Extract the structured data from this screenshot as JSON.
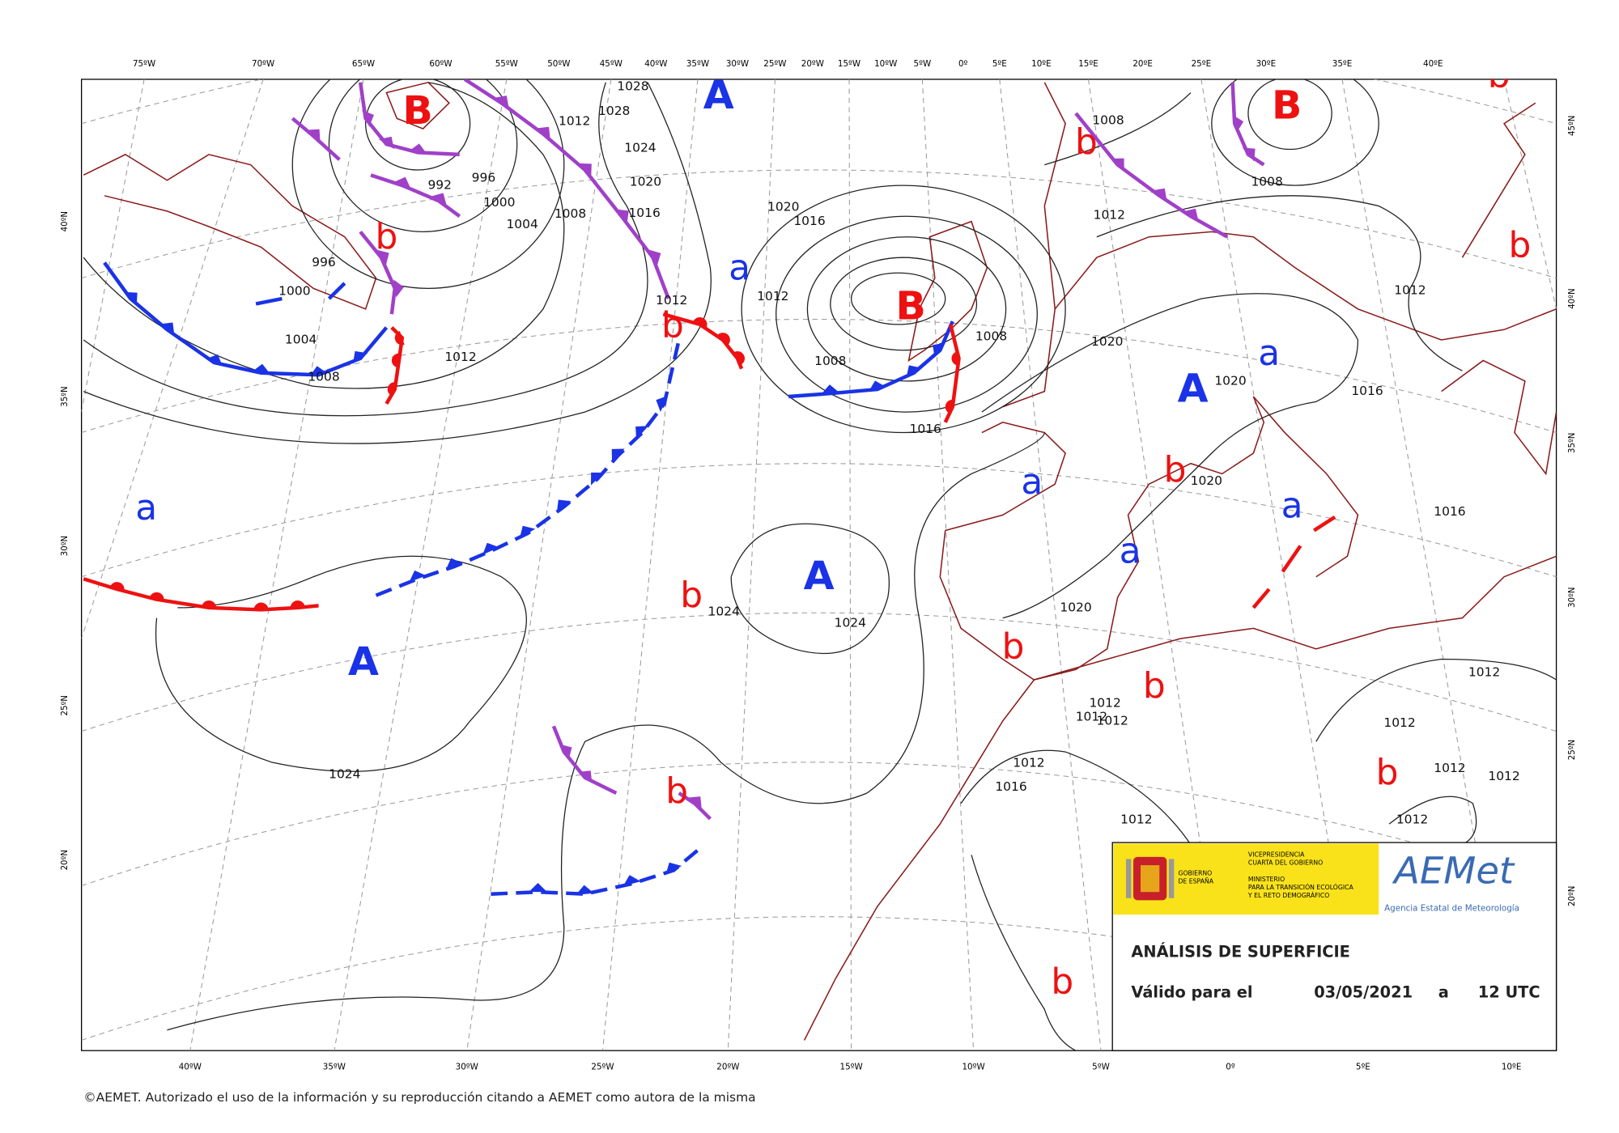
{
  "map": {
    "top_lon_labels": [
      "75ºW",
      "70ºW",
      "65ºW",
      "60ºW",
      "55ºW",
      "50ºW",
      "45ºW",
      "40ºW",
      "35ºW",
      "30ºW",
      "25ºW",
      "20ºW",
      "15ºW",
      "10ºW",
      "5ºW",
      "0º",
      "5ºE",
      "10ºE",
      "15ºE",
      "20ºE",
      "25ºE",
      "30ºE",
      "35ºE",
      "40ºE"
    ],
    "bottom_lon_labels": [
      "40ºW",
      "35ºW",
      "30ºW",
      "25ºW",
      "20ºW",
      "15ºW",
      "10ºW",
      "5ºW",
      "0º",
      "5ºE",
      "10ºE"
    ],
    "left_lat_labels": [
      "40ºN",
      "35ºN",
      "30ºN",
      "25ºN",
      "20ºN"
    ],
    "right_lat_labels": [
      "45ºN",
      "40ºN",
      "35ºN",
      "30ºN",
      "25ºN",
      "20ºN"
    ],
    "high_centers": [
      "A",
      "A",
      "A",
      "A"
    ],
    "low_centers": [
      "B",
      "B",
      "B"
    ],
    "relative_highs": [
      "a",
      "a",
      "a",
      "a",
      "a",
      "a"
    ],
    "relative_lows": [
      "b",
      "b",
      "b",
      "b",
      "b",
      "b",
      "b",
      "b",
      "b",
      "b",
      "b",
      "b"
    ],
    "isobar_labels": [
      "1028",
      "1012",
      "1028",
      "1024",
      "1020",
      "1016",
      "1008",
      "1004",
      "1000",
      "996",
      "992",
      "996",
      "1000",
      "1004",
      "1008",
      "1012",
      "1012",
      "1012",
      "1020",
      "1016",
      "1008",
      "1008",
      "1016",
      "1012",
      "1020",
      "1020",
      "1016",
      "1020",
      "1012",
      "1016",
      "1020",
      "1024",
      "1024",
      "1024",
      "1012",
      "1012",
      "1012",
      "1012",
      "1016",
      "1012",
      "1012",
      "1012",
      "1012",
      "1012",
      "1012",
      "1008",
      "1008"
    ]
  },
  "legend": {
    "government": [
      "GOBIERNO",
      "DE ESPAÑA"
    ],
    "ministry": [
      "VICEPRESIDENCIA",
      "CUARTA DEL GOBIERNO",
      "",
      "MINISTERIO",
      "PARA LA TRANSICIÓN ECOLÓGICA",
      "Y EL RETO DEMOGRÁFICO"
    ],
    "logo": "AEMet",
    "agency": "Agencia Estatal de Meteorología",
    "title": "ANÁLISIS DE SUPERFICIE",
    "valid_label": "Válido para el",
    "date": "03/05/2021",
    "connector": "a",
    "time": "12 UTC"
  },
  "footer": "©AEMET. Autorizado el uso de la información y su reproducción citando a AEMET como autora de la misma"
}
